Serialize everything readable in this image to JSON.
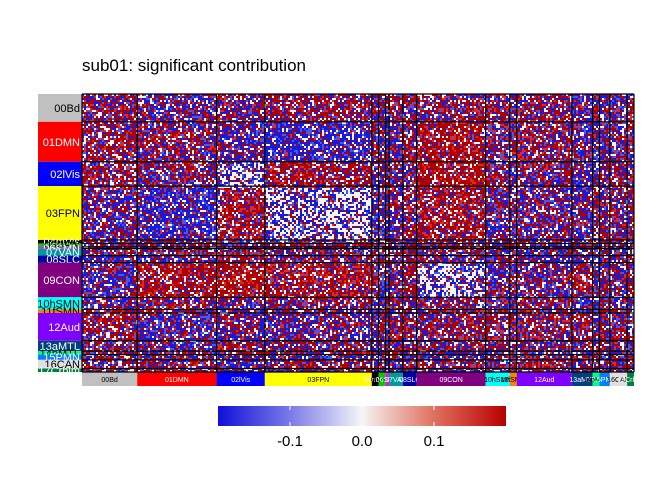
{
  "chart_data": {
    "type": "heatmap",
    "title": "sub01: significant contribution",
    "networks": [
      {
        "name": "00Bd",
        "size": 16,
        "color": "#c0c0c0"
      },
      {
        "name": "01DMN",
        "size": 23,
        "color": "#ff0000"
      },
      {
        "name": "02lVis",
        "size": 14,
        "color": "#0000ff"
      },
      {
        "name": "03FPN",
        "size": 31,
        "color": "#ffff00"
      },
      {
        "name": "04mVis",
        "size": 2,
        "color": "#000000"
      },
      {
        "name": "05BRN",
        "size": 2,
        "color": "#00cc00"
      },
      {
        "name": "06SMN",
        "size": 1,
        "color": "#ff00ff"
      },
      {
        "name": "07VAN",
        "size": 4,
        "color": "#009999"
      },
      {
        "name": "08SLC",
        "size": 4,
        "color": "#0000aa"
      },
      {
        "name": "09CON",
        "size": 20,
        "color": "#800080"
      },
      {
        "name": "10hSMN",
        "size": 7,
        "color": "#00ffff"
      },
      {
        "name": "11fSMN",
        "size": 2,
        "color": "#ff8000"
      },
      {
        "name": "12Aud",
        "size": 16,
        "color": "#8000ff"
      },
      {
        "name": "13aMTL",
        "size": 6,
        "color": "#004080"
      },
      {
        "name": "14pMTL",
        "size": 2,
        "color": "#00ff80"
      },
      {
        "name": "15PMN",
        "size": 3,
        "color": "#0080ff"
      },
      {
        "name": "16CAN",
        "size": 5,
        "color": "#e0e0e0"
      },
      {
        "name": "17Crblm",
        "size": 2,
        "color": "#008040"
      }
    ],
    "color_scale": {
      "range": [
        -0.2,
        0.2
      ],
      "low": "#1010d8",
      "mid": "#f5f5f5",
      "high": "#b80000",
      "ticks": [
        -0.1,
        0.0,
        0.1
      ],
      "tick_labels": [
        "-0.1",
        "0.0",
        "0.1"
      ]
    },
    "legend_position": "bottom"
  }
}
